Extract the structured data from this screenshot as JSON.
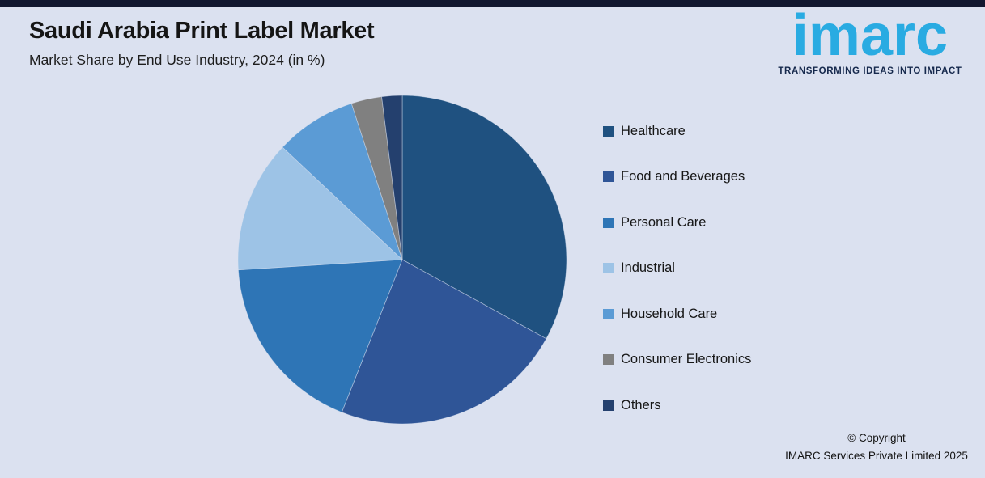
{
  "page": {
    "background_color": "#dbe1f0",
    "top_bar_color": "#121830"
  },
  "header": {
    "title": "Saudi Arabia Print Label Market",
    "subtitle": "Market Share by End Use Industry, 2024 (in %)"
  },
  "logo": {
    "text": "imarc",
    "tagline": "TRANSFORMING IDEAS INTO IMPACT",
    "brand_color": "#29abe2",
    "tagline_color": "#16294d"
  },
  "chart_data": {
    "type": "pie",
    "title": "Saudi Arabia Print Label Market",
    "subtitle": "Market Share by End Use Industry, 2024 (in %)",
    "unit": "%",
    "start_angle_deg": 0,
    "direction": "clockwise",
    "legend_position": "right",
    "labels": [
      "Healthcare",
      "Food and Beverages",
      "Personal Care",
      "Industrial",
      "Household Care",
      "Consumer Electronics",
      "Others"
    ],
    "values": [
      33,
      23,
      18,
      13,
      8,
      3,
      2
    ],
    "colors": [
      "#1f5180",
      "#2f5597",
      "#2e75b6",
      "#9dc3e6",
      "#5b9bd5",
      "#808080",
      "#24406e"
    ]
  },
  "footer": {
    "line1": "© Copyright",
    "line2": "IMARC Services Private Limited 2025"
  }
}
